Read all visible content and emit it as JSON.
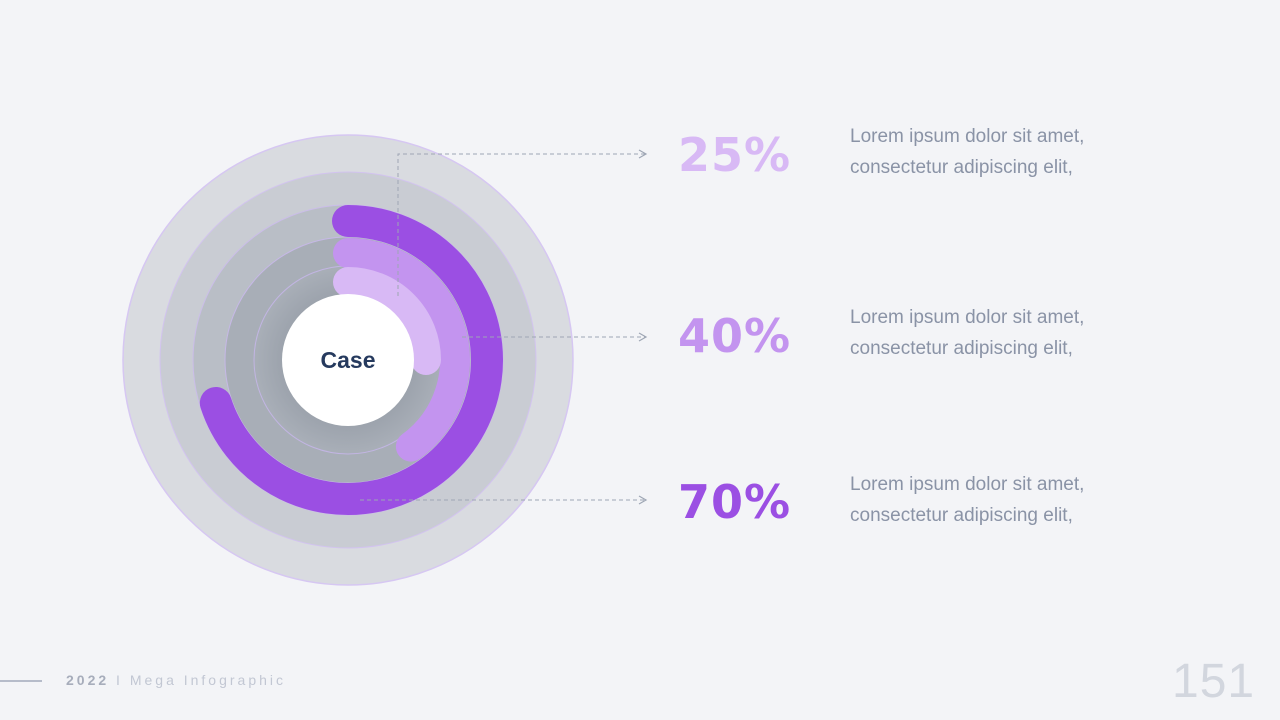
{
  "chart_data": {
    "type": "radial-bar",
    "center_label": "Case",
    "series": [
      {
        "label": "25%",
        "value": 25,
        "color": "#d8b9f5",
        "desc_line1": "Lorem ipsum dolor sit amet,",
        "desc_line2": "consectetur adipiscing elit,"
      },
      {
        "label": "40%",
        "value": 40,
        "color": "#c394ef",
        "desc_line1": "Lorem ipsum dolor sit amet,",
        "desc_line2": "consectetur adipiscing elit,"
      },
      {
        "label": "70%",
        "value": 70,
        "color": "#9b4fe3",
        "desc_line1": "Lorem ipsum dolor sit amet,",
        "desc_line2": "consectetur adipiscing elit,"
      }
    ]
  },
  "footer": {
    "year": "2022",
    "separator": "I",
    "title": "Mega Infographic"
  },
  "page_number": "151"
}
